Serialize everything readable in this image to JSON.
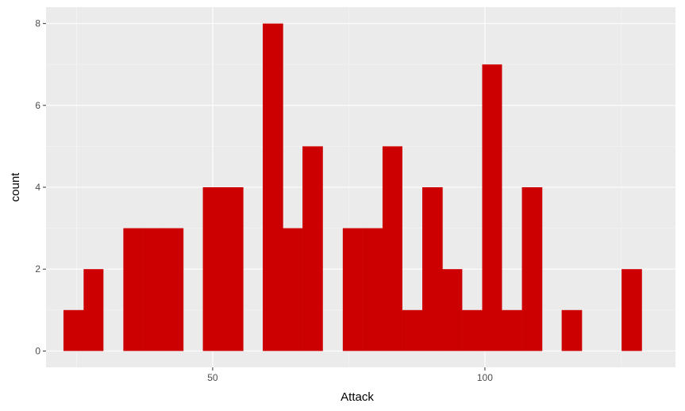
{
  "chart_data": {
    "type": "histogram",
    "xlabel": "Attack",
    "ylabel": "count",
    "xlim": [
      19.4,
      135.0
    ],
    "ylim": [
      -0.4,
      8.4
    ],
    "x_ticks": [
      50,
      100
    ],
    "y_ticks": [
      0,
      2,
      4,
      6,
      8
    ],
    "grid": true,
    "bin_width": 3.66,
    "bins": [
      {
        "x0": 22.6,
        "x1": 26.3,
        "count": 1
      },
      {
        "x0": 26.3,
        "x1": 29.9,
        "count": 2
      },
      {
        "x0": 29.9,
        "x1": 33.6,
        "count": 0
      },
      {
        "x0": 33.6,
        "x1": 37.2,
        "count": 3
      },
      {
        "x0": 37.2,
        "x1": 40.9,
        "count": 3
      },
      {
        "x0": 40.9,
        "x1": 44.6,
        "count": 3
      },
      {
        "x0": 44.6,
        "x1": 48.2,
        "count": 0
      },
      {
        "x0": 48.2,
        "x1": 51.9,
        "count": 4
      },
      {
        "x0": 51.9,
        "x1": 55.6,
        "count": 4
      },
      {
        "x0": 55.6,
        "x1": 59.2,
        "count": 0
      },
      {
        "x0": 59.2,
        "x1": 62.9,
        "count": 8
      },
      {
        "x0": 62.9,
        "x1": 66.5,
        "count": 3
      },
      {
        "x0": 66.5,
        "x1": 70.2,
        "count": 5
      },
      {
        "x0": 70.2,
        "x1": 73.9,
        "count": 0
      },
      {
        "x0": 73.9,
        "x1": 77.5,
        "count": 3
      },
      {
        "x0": 77.5,
        "x1": 81.2,
        "count": 3
      },
      {
        "x0": 81.2,
        "x1": 84.8,
        "count": 5
      },
      {
        "x0": 84.8,
        "x1": 88.5,
        "count": 1
      },
      {
        "x0": 88.5,
        "x1": 92.2,
        "count": 4
      },
      {
        "x0": 92.2,
        "x1": 95.8,
        "count": 2
      },
      {
        "x0": 95.8,
        "x1": 99.5,
        "count": 1
      },
      {
        "x0": 99.5,
        "x1": 103.1,
        "count": 7
      },
      {
        "x0": 103.1,
        "x1": 106.8,
        "count": 1
      },
      {
        "x0": 106.8,
        "x1": 110.5,
        "count": 4
      },
      {
        "x0": 110.5,
        "x1": 114.1,
        "count": 0
      },
      {
        "x0": 114.1,
        "x1": 117.8,
        "count": 1
      },
      {
        "x0": 117.8,
        "x1": 121.4,
        "count": 0
      },
      {
        "x0": 121.4,
        "x1": 125.1,
        "count": 0
      },
      {
        "x0": 125.1,
        "x1": 128.8,
        "count": 2
      }
    ],
    "colors": {
      "bar": "#cc0000",
      "panel": "#ebebeb",
      "grid_major": "#ffffff",
      "grid_minor": "#f5f5f5",
      "tick": "#333333"
    }
  }
}
